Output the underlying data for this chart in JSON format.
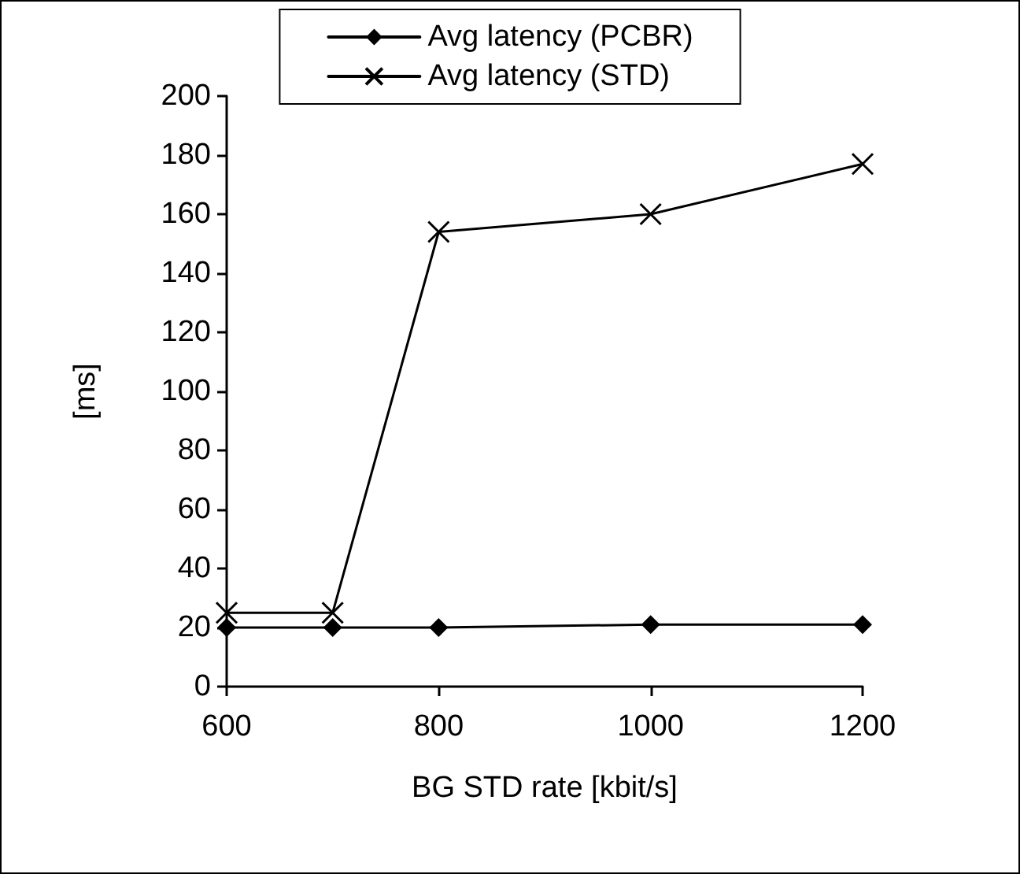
{
  "chart_data": {
    "type": "line",
    "xlabel": "BG STD rate [kbit/s]",
    "ylabel": "[ms]",
    "x": [
      600,
      700,
      800,
      1000,
      1200
    ],
    "series": [
      {
        "name": "Avg latency (PCBR)",
        "color": "#000000",
        "marker": "diamond",
        "values": [
          20,
          20,
          20,
          21,
          21
        ]
      },
      {
        "name": "Avg latency (STD)",
        "color": "#000000",
        "marker": "cross",
        "values": [
          25,
          25,
          154,
          160,
          177
        ]
      }
    ],
    "xlim": [
      600,
      1200
    ],
    "xticks": [
      600,
      800,
      1000,
      1200
    ],
    "ylim": [
      0,
      200
    ],
    "yticks": [
      0,
      20,
      40,
      60,
      80,
      100,
      120,
      140,
      160,
      180,
      200
    ],
    "grid": false,
    "legend": "top",
    "line_style": "solid"
  }
}
